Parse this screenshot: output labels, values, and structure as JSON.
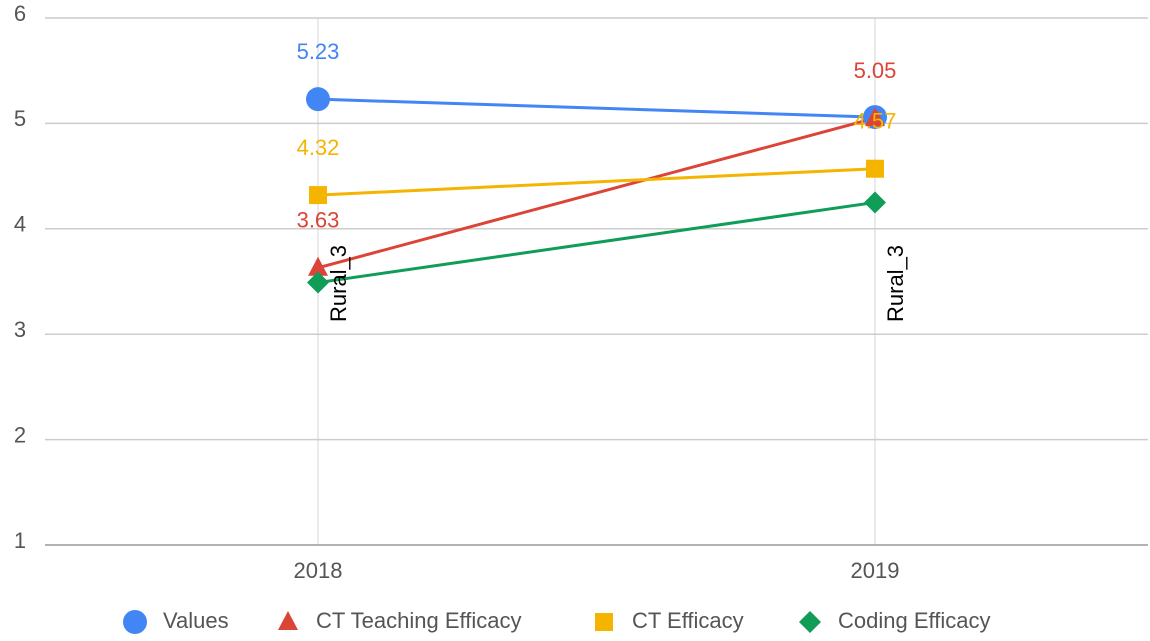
{
  "chart_data": {
    "type": "line",
    "categories": [
      "2018",
      "2019"
    ],
    "ylim": [
      1,
      6
    ],
    "yticks": [
      1,
      2,
      3,
      4,
      5,
      6
    ],
    "grid": true,
    "legend": "bottom",
    "annotations": [
      "Rural_3",
      "Rural_3"
    ],
    "series": [
      {
        "name": "Values",
        "color": "#4285f4",
        "marker": "circle",
        "values": [
          5.23,
          5.06
        ],
        "value_labels": [
          "5.23",
          null
        ]
      },
      {
        "name": "CT Teaching Efficacy",
        "color": "#db4437",
        "marker": "triangle",
        "values": [
          3.63,
          5.05
        ],
        "value_labels": [
          "3.63",
          "5.05"
        ]
      },
      {
        "name": "CT Efficacy",
        "color": "#f4b400",
        "marker": "square",
        "values": [
          4.32,
          4.57
        ],
        "value_labels": [
          "4.32",
          "4.57"
        ]
      },
      {
        "name": "Coding Efficacy",
        "color": "#0f9d58",
        "marker": "diamond",
        "values": [
          3.49,
          4.25
        ]
      }
    ]
  }
}
